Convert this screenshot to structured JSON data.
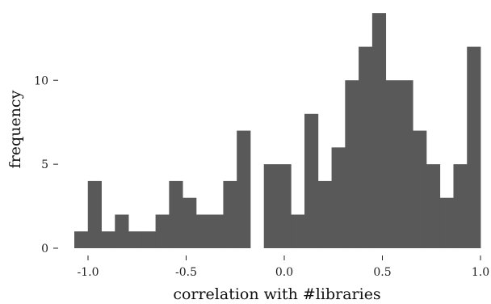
{
  "chart_data": {
    "type": "bar",
    "title": "",
    "xlabel": "correlation with #libraries",
    "ylabel": "frequency",
    "bin_width": 0.0689,
    "bins_start": -1.07,
    "counts": [
      1,
      4,
      1,
      2,
      1,
      1,
      2,
      4,
      3,
      2,
      2,
      4,
      7,
      0,
      5,
      5,
      2,
      8,
      4,
      6,
      10,
      12,
      14,
      10,
      10,
      7,
      5,
      3,
      5,
      12
    ],
    "xlim": [
      -1.07,
      1.0
    ],
    "ylim": [
      0,
      14.2
    ],
    "xticks": [
      -1.0,
      -0.5,
      0.0,
      0.5,
      1.0
    ],
    "xtick_labels": [
      "-1.0",
      "-0.5",
      "0.0",
      "0.5",
      "1.0"
    ],
    "yticks": [
      0,
      5,
      10
    ],
    "ytick_labels": [
      "0",
      "5",
      "10"
    ],
    "bar_color": "#595959",
    "grid": false
  }
}
